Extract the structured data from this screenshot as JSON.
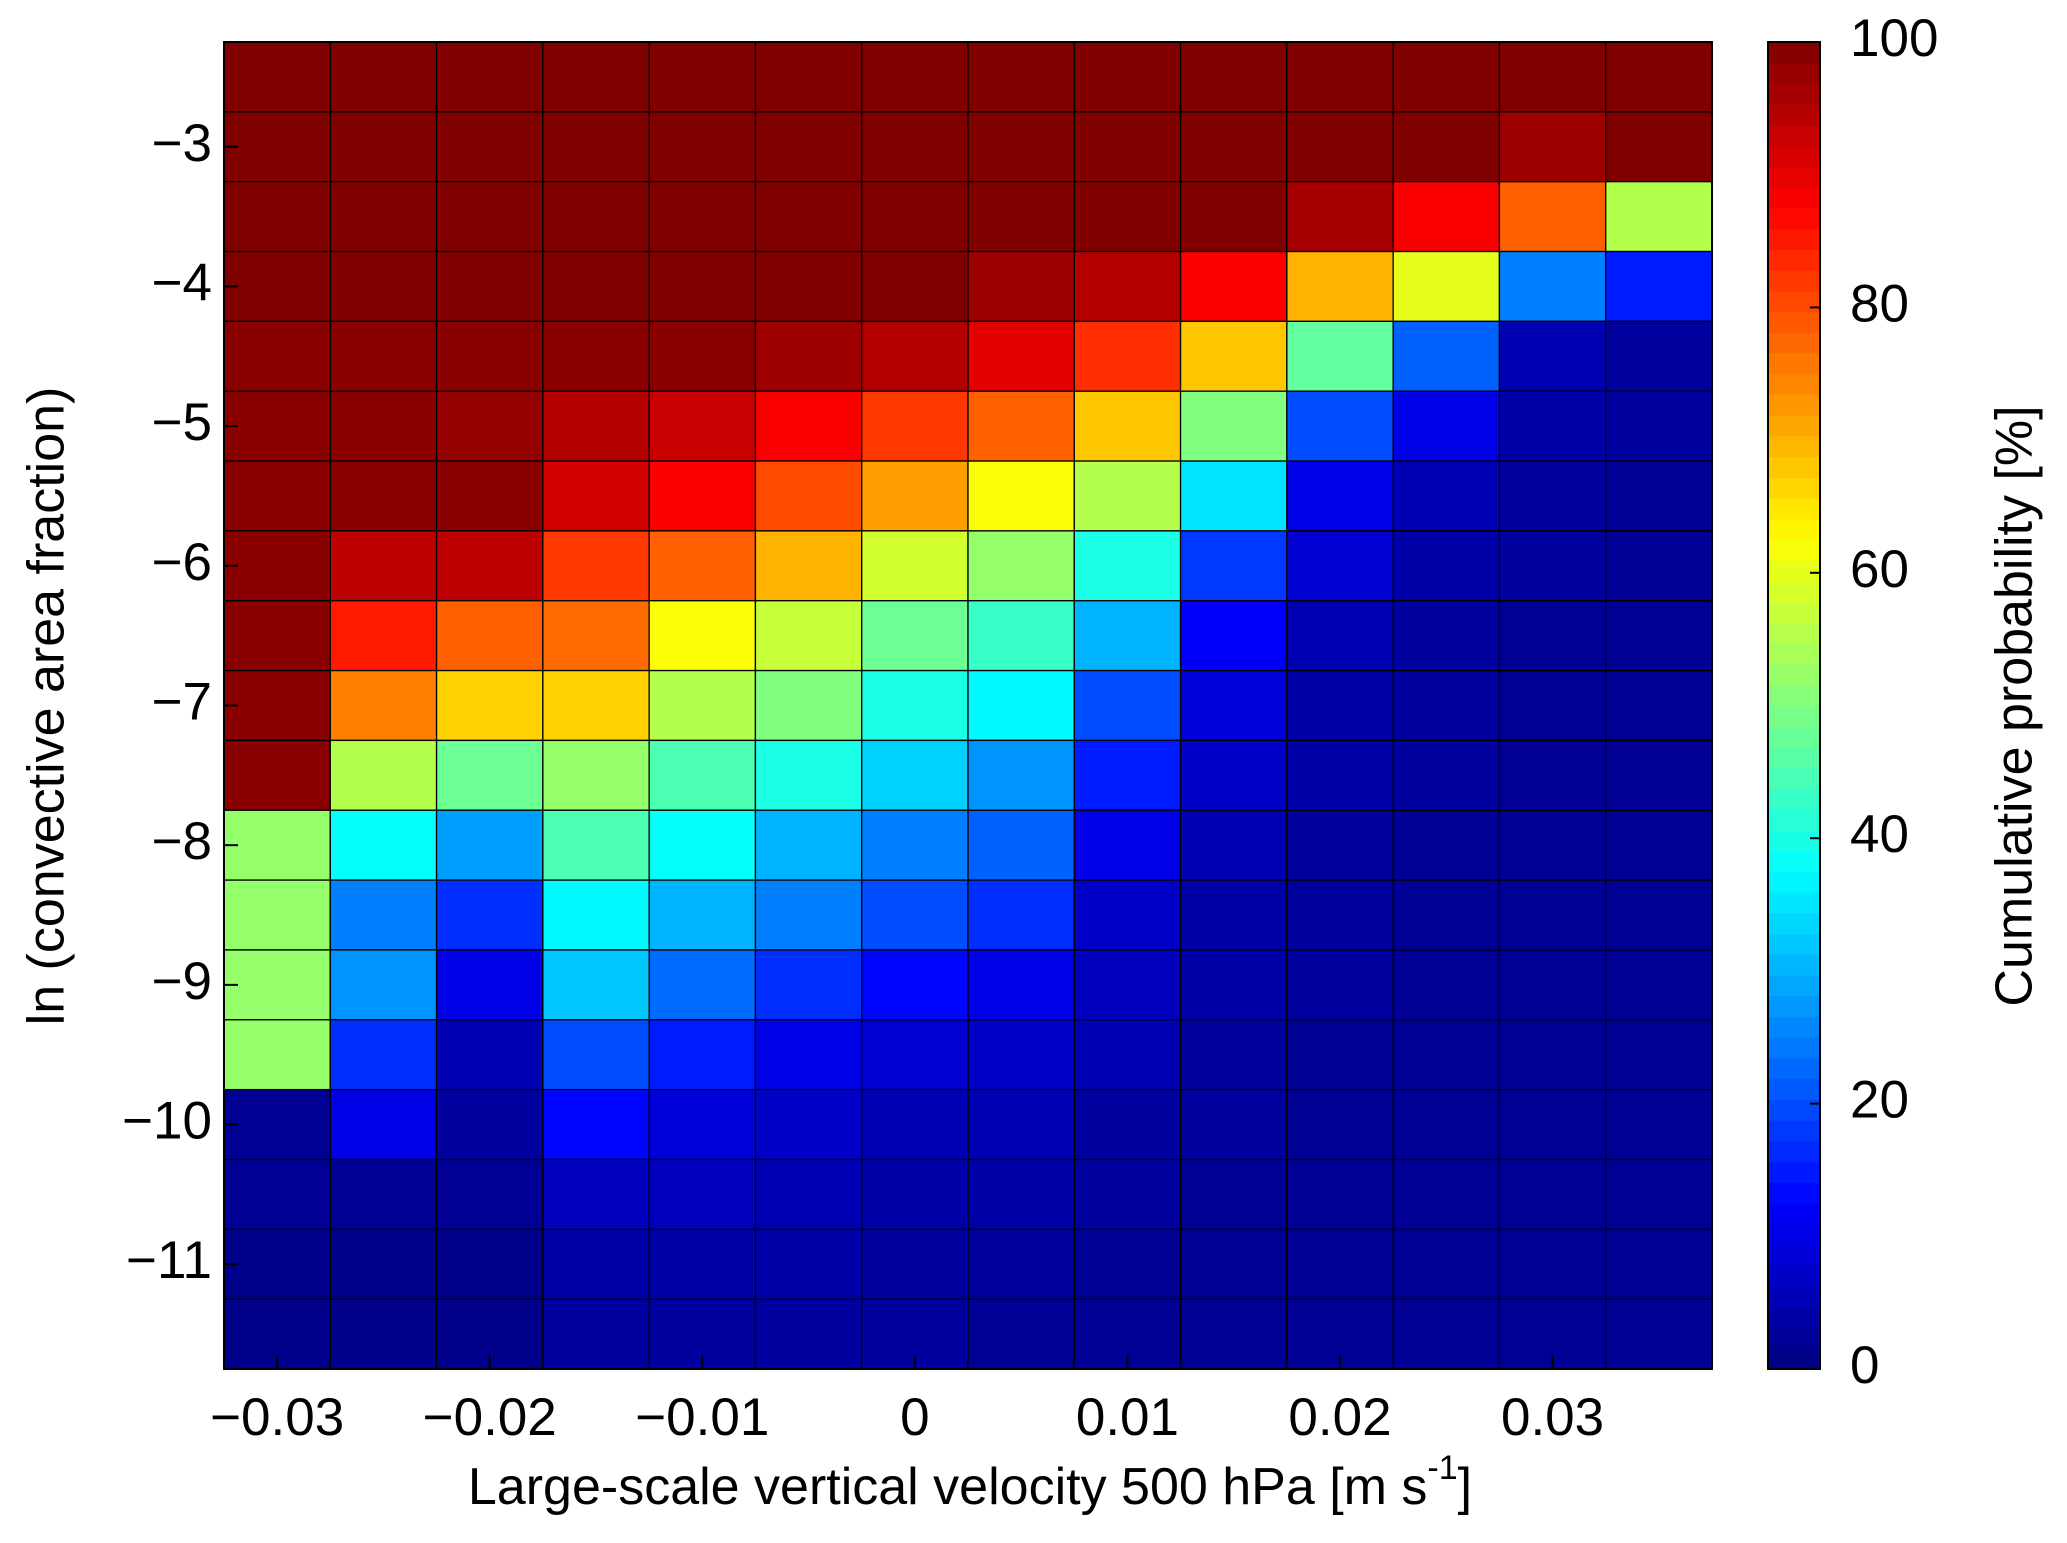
{
  "chart_data": {
    "type": "heatmap",
    "x_label": {
      "text": "Large-scale vertical velocity 500 hPa [m s",
      "sup": "-1",
      "end": "]"
    },
    "y_label": "ln (convective area fraction)",
    "colorbar_label": "Cumulative probability [%]",
    "colormap": "jet",
    "x": [
      -0.03,
      -0.025,
      -0.02,
      -0.015,
      -0.01,
      -0.005,
      0,
      0.005,
      0.01,
      0.015,
      0.02,
      0.025,
      0.03,
      0.035
    ],
    "y": [
      -2.5,
      -3,
      -3.5,
      -4,
      -4.5,
      -5,
      -5.5,
      -6,
      -6.5,
      -7,
      -7.5,
      -8,
      -8.5,
      -9,
      -9.5,
      -10,
      -10.5,
      -11,
      -11.5
    ],
    "z": [
      [
        100,
        100,
        100,
        100,
        100,
        100,
        100,
        100,
        100,
        100,
        100,
        100,
        100,
        100
      ],
      [
        100,
        100,
        100,
        100,
        100,
        100,
        100,
        100,
        100,
        100,
        100,
        100,
        97,
        100
      ],
      [
        100,
        100,
        100,
        100,
        100,
        100,
        100,
        100,
        100,
        100,
        96,
        88,
        78,
        55
      ],
      [
        100,
        100,
        100,
        100,
        100,
        100,
        100,
        97,
        95,
        88,
        70,
        60,
        25,
        15
      ],
      [
        99,
        99,
        99,
        99,
        99,
        97,
        95,
        90,
        83,
        68,
        47,
        22,
        5,
        3
      ],
      [
        99,
        99,
        98,
        95,
        93,
        88,
        82,
        78,
        68,
        50,
        20,
        10,
        4,
        3
      ],
      [
        99,
        99,
        99,
        92,
        88,
        80,
        72,
        62,
        55,
        35,
        10,
        5,
        3,
        2
      ],
      [
        99,
        94,
        94,
        82,
        78,
        70,
        58,
        52,
        40,
        18,
        8,
        4,
        3,
        2
      ],
      [
        99,
        85,
        78,
        77,
        62,
        57,
        48,
        43,
        30,
        12,
        5,
        3,
        2,
        2
      ],
      [
        99,
        75,
        67,
        67,
        55,
        50,
        40,
        37,
        20,
        9,
        4,
        3,
        2,
        2
      ],
      [
        99,
        55,
        48,
        52,
        45,
        40,
        33,
        27,
        15,
        7,
        4,
        3,
        2,
        2
      ],
      [
        52,
        38,
        28,
        45,
        38,
        30,
        25,
        22,
        10,
        5,
        3,
        2,
        2,
        2
      ],
      [
        52,
        25,
        17,
        37,
        30,
        25,
        20,
        17,
        7,
        4,
        3,
        2,
        2,
        2
      ],
      [
        52,
        27,
        10,
        32,
        23,
        17,
        13,
        10,
        6,
        4,
        3,
        2,
        2,
        2
      ],
      [
        52,
        17,
        5,
        20,
        15,
        10,
        8,
        7,
        5,
        3,
        2,
        2,
        2,
        2
      ],
      [
        2,
        10,
        3,
        13,
        9,
        7,
        5,
        5,
        3,
        3,
        2,
        2,
        2,
        2
      ],
      [
        2,
        2,
        2,
        6,
        6,
        5,
        4,
        4,
        3,
        2,
        2,
        2,
        2,
        2
      ],
      [
        1,
        1,
        1,
        4,
        4,
        4,
        3,
        3,
        2,
        2,
        2,
        2,
        2,
        2
      ],
      [
        1,
        1,
        1,
        3,
        3,
        3,
        3,
        2,
        2,
        2,
        2,
        2,
        2,
        2
      ]
    ],
    "xlim": [
      -0.0325,
      0.0375
    ],
    "ylim": [
      -11.75,
      -2.25
    ],
    "xticks": [
      {
        "value": -0.03,
        "label": "−0.03"
      },
      {
        "value": -0.02,
        "label": "−0.02"
      },
      {
        "value": -0.01,
        "label": "−0.01"
      },
      0,
      0.01,
      0.02,
      0.03
    ],
    "yticks": [
      {
        "value": -3,
        "label": "−3"
      },
      {
        "value": -4,
        "label": "−4"
      },
      {
        "value": -5,
        "label": "−5"
      },
      {
        "value": -6,
        "label": "−6"
      },
      {
        "value": -7,
        "label": "−7"
      },
      {
        "value": -8,
        "label": "−8"
      },
      {
        "value": -9,
        "label": "−9"
      },
      {
        "value": -10,
        "label": "−10"
      },
      {
        "value": -11,
        "label": "−11"
      }
    ],
    "clim": [
      0,
      100
    ],
    "cticks": [
      0,
      20,
      40,
      60,
      80,
      100
    ]
  }
}
